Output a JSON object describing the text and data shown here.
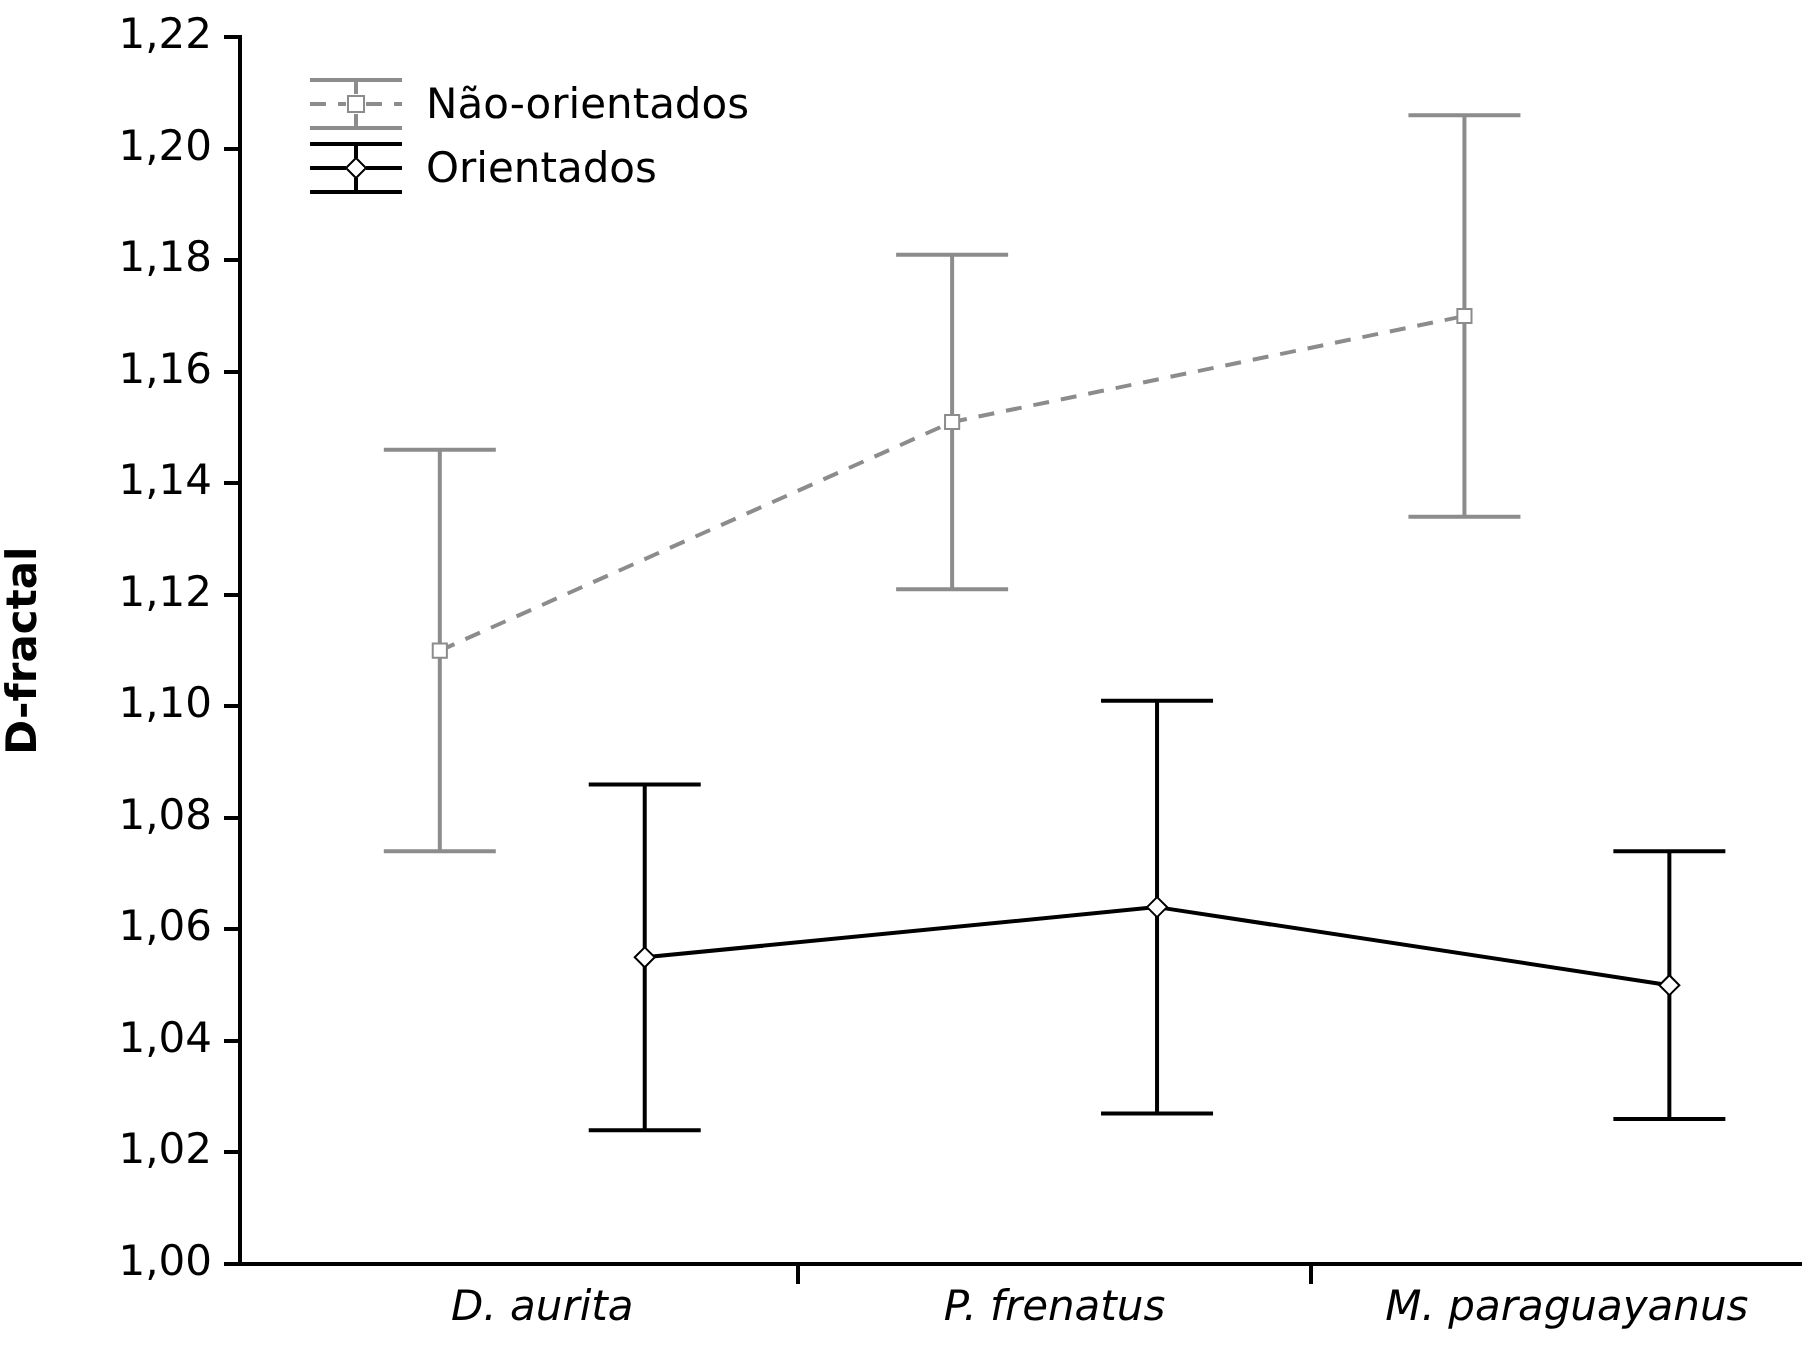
{
  "chart_data": {
    "type": "line",
    "ylabel": "D-fractal",
    "categories": [
      "D. aurita",
      "P. frenatus",
      "M. paraguayanus"
    ],
    "series": [
      {
        "name": "Não-orientados",
        "color": "#8c8c8c",
        "marker": "square",
        "line_style": "dashed",
        "values": [
          1.11,
          1.151,
          1.17
        ],
        "errors": [
          0.036,
          0.03,
          0.036
        ]
      },
      {
        "name": "Orientados",
        "color": "#000000",
        "marker": "diamond",
        "line_style": "solid",
        "values": [
          1.055,
          1.064,
          1.05
        ],
        "errors": [
          0.031,
          0.037,
          0.024
        ]
      }
    ],
    "ylim": [
      1.0,
      1.22
    ],
    "yticks": [
      {
        "value": 1.0,
        "label": "1,00"
      },
      {
        "value": 1.02,
        "label": "1,02"
      },
      {
        "value": 1.04,
        "label": "1,04"
      },
      {
        "value": 1.06,
        "label": "1,06"
      },
      {
        "value": 1.08,
        "label": "1,08"
      },
      {
        "value": 1.1,
        "label": "1,10"
      },
      {
        "value": 1.12,
        "label": "1,12"
      },
      {
        "value": 1.14,
        "label": "1,14"
      },
      {
        "value": 1.16,
        "label": "1,16"
      },
      {
        "value": 1.18,
        "label": "1,18"
      },
      {
        "value": 1.2,
        "label": "1,20"
      },
      {
        "value": 1.22,
        "label": "1,22"
      }
    ],
    "grid": false,
    "legend": "top left"
  }
}
